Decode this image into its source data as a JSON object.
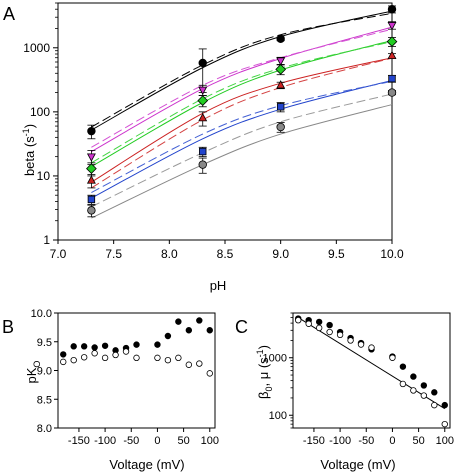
{
  "panel_labels": {
    "a": "A",
    "b": "B",
    "c": "C"
  },
  "chart_data": [
    {
      "panel": "A",
      "type": "line",
      "xlabel": "pH",
      "ylabel": "beta (s",
      "ylabel_sup": "-1",
      "ylabel_close": ")",
      "xlim": [
        7.0,
        10.0
      ],
      "ylim": [
        1,
        5000
      ],
      "yscale": "log",
      "xticks": [
        "7.0",
        "7.5",
        "8.0",
        "8.5",
        "9.0",
        "9.5",
        "10.0"
      ],
      "yticks": [
        "1",
        "10",
        "100",
        "1000"
      ],
      "x": [
        7.3,
        8.3,
        9.0,
        10.0
      ],
      "series": [
        {
          "marker": "circle",
          "color": "#000000",
          "values": [
            50,
            580,
            1380,
            4000
          ],
          "err": [
            12,
            380,
            90,
            500
          ],
          "fit_solid": [
            52,
            490,
            1500,
            3750
          ],
          "fit_dashed": [
            58,
            540,
            1600,
            3450
          ]
        },
        {
          "marker": "triangle-down",
          "color": "#cc33cc",
          "values": [
            20,
            220,
            630,
            2250
          ],
          "err": [
            5,
            40,
            80,
            300
          ],
          "fit_solid": [
            24,
            230,
            680,
            2100
          ],
          "fit_dashed": [
            28,
            260,
            700,
            1950
          ]
        },
        {
          "marker": "diamond",
          "color": "#22cc22",
          "values": [
            13,
            150,
            460,
            1250
          ],
          "err": [
            3,
            30,
            80,
            200
          ],
          "fit_solid": [
            14,
            140,
            450,
            1300
          ],
          "fit_dashed": [
            16,
            160,
            480,
            1250
          ]
        },
        {
          "marker": "triangle-up",
          "color": "#cc2222",
          "values": [
            8.5,
            80,
            260,
            750
          ],
          "err": [
            2,
            20,
            30,
            60
          ],
          "fit_solid": [
            8,
            95,
            280,
            700
          ],
          "fit_dashed": [
            6.5,
            75,
            240,
            690
          ]
        },
        {
          "marker": "square",
          "color": "#2244cc",
          "values": [
            4.3,
            24,
            120,
            330
          ],
          "err": [
            0.7,
            4,
            20,
            40
          ],
          "fit_solid": [
            4.5,
            38,
            110,
            310
          ],
          "fit_dashed": [
            5.5,
            45,
            125,
            300
          ]
        },
        {
          "marker": "circle",
          "color": "#888888",
          "values": [
            2.9,
            15,
            58,
            200
          ],
          "err": [
            0.6,
            4,
            10,
            15
          ],
          "fit_solid": [
            2.2,
            15,
            45,
            130
          ],
          "fit_dashed": [
            3.3,
            23,
            70,
            190
          ]
        }
      ]
    },
    {
      "panel": "B",
      "type": "scatter",
      "xlabel": "Voltage (mV)",
      "ylabel": "pK",
      "ylabel_sub": "O",
      "xlim": [
        -190,
        110
      ],
      "ylim": [
        8.0,
        10.0
      ],
      "xticks": [
        "-150",
        "-100",
        "-50",
        "0",
        "50",
        "100"
      ],
      "yticks": [
        "8.0",
        "8.5",
        "9.0",
        "9.5",
        "10.0"
      ],
      "x": [
        -180,
        -160,
        -140,
        -120,
        -100,
        -80,
        -60,
        -40,
        0,
        20,
        40,
        60,
        80,
        100
      ],
      "series": [
        {
          "marker": "filled",
          "values": [
            9.28,
            9.42,
            9.42,
            9.4,
            9.43,
            9.35,
            9.39,
            9.45,
            9.45,
            9.6,
            9.85,
            9.7,
            9.87,
            9.7
          ]
        },
        {
          "marker": "open",
          "values": [
            9.15,
            9.18,
            9.23,
            9.3,
            9.22,
            9.27,
            9.33,
            9.22,
            9.22,
            9.18,
            9.22,
            9.1,
            9.12,
            8.95
          ]
        }
      ]
    },
    {
      "panel": "C",
      "type": "scatter",
      "xlabel": "Voltage (mV)",
      "ylabel_beta": "β",
      "ylabel_sub": "0",
      "ylabel_rest": ", μ (s",
      "ylabel_sup": "-1",
      "ylabel_close": ")",
      "xlim": [
        -190,
        110
      ],
      "ylim": [
        60,
        6000
      ],
      "yscale": "log",
      "xticks": [
        "-150",
        "-100",
        "-50",
        "0",
        "50",
        "100"
      ],
      "yticks": [
        "100",
        "1000"
      ],
      "x": [
        -180,
        -160,
        -140,
        -120,
        -100,
        -80,
        -60,
        -40,
        0,
        20,
        40,
        60,
        80,
        100
      ],
      "series": [
        {
          "marker": "filled",
          "values": [
            4800,
            4500,
            4200,
            3700,
            2800,
            2200,
            1800,
            1400,
            1050,
            700,
            470,
            330,
            250,
            150
          ]
        },
        {
          "marker": "open",
          "values": [
            4500,
            3900,
            3300,
            2800,
            2500,
            2000,
            1700,
            1500,
            1000,
            350,
            270,
            220,
            150,
            70
          ]
        }
      ],
      "fit_x": [
        -180,
        100
      ],
      "fit_y": [
        5000,
        130
      ]
    }
  ]
}
